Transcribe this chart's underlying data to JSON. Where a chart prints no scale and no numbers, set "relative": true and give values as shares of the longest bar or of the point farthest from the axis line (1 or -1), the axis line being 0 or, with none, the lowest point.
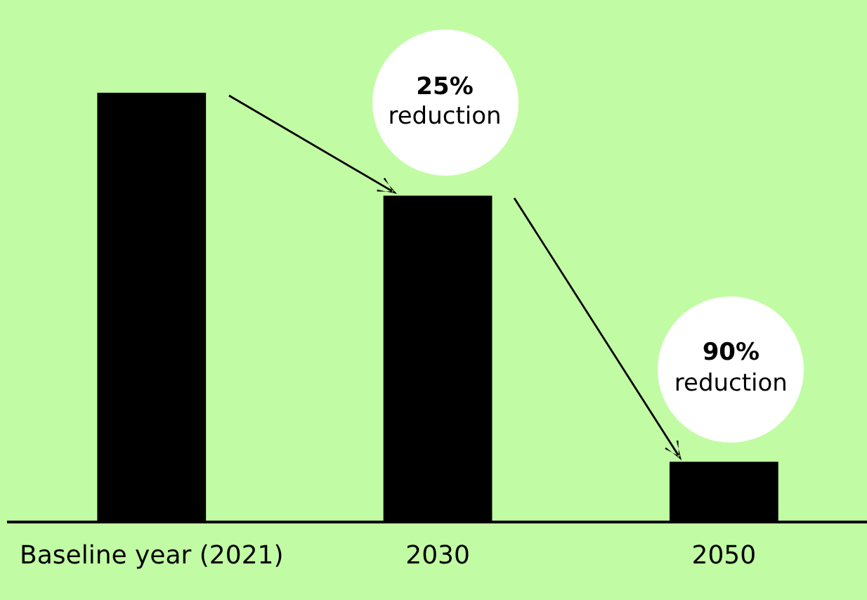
{
  "chart_data": {
    "type": "bar",
    "relative": true,
    "categories": [
      "Baseline year (2021)",
      "2030",
      "2050"
    ],
    "values": [
      1,
      0.76,
      0.14
    ],
    "color": "#000000",
    "annotations": [
      "25% reduction",
      "90% reduction"
    ],
    "grid": false,
    "legend": false
  }
}
